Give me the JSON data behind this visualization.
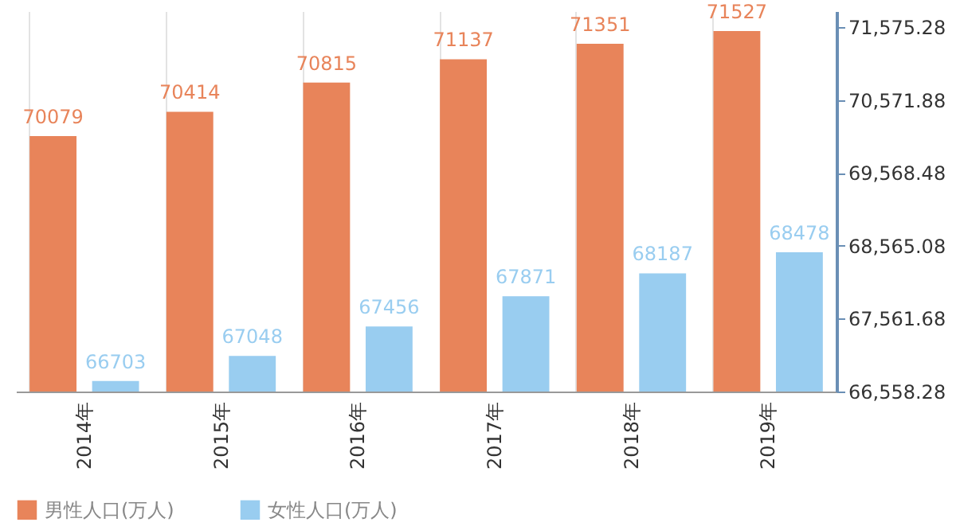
{
  "chart_data": {
    "type": "bar",
    "categories": [
      "2014年",
      "2015年",
      "2016年",
      "2017年",
      "2018年",
      "2019年"
    ],
    "series": [
      {
        "name": "男性人口(万人)",
        "color": "#e8845a",
        "values": [
          70079,
          70414,
          70815,
          71137,
          71351,
          71527
        ]
      },
      {
        "name": "女性人口(万人)",
        "color": "#99cdf0",
        "values": [
          66703,
          67048,
          67456,
          67871,
          68187,
          68478
        ]
      }
    ],
    "ylim": [
      66558.28,
      71800
    ],
    "yticks": [
      {
        "value": 66558.28,
        "label": "66,558.28"
      },
      {
        "value": 67561.68,
        "label": "67,561.68"
      },
      {
        "value": 68565.08,
        "label": "68,565.08"
      },
      {
        "value": 69568.48,
        "label": "69,568.48"
      },
      {
        "value": 70571.88,
        "label": "70,571.88"
      },
      {
        "value": 71575.28,
        "label": "71,575.28"
      }
    ],
    "data_labels": true,
    "grid": "x",
    "legend": "bottom"
  }
}
